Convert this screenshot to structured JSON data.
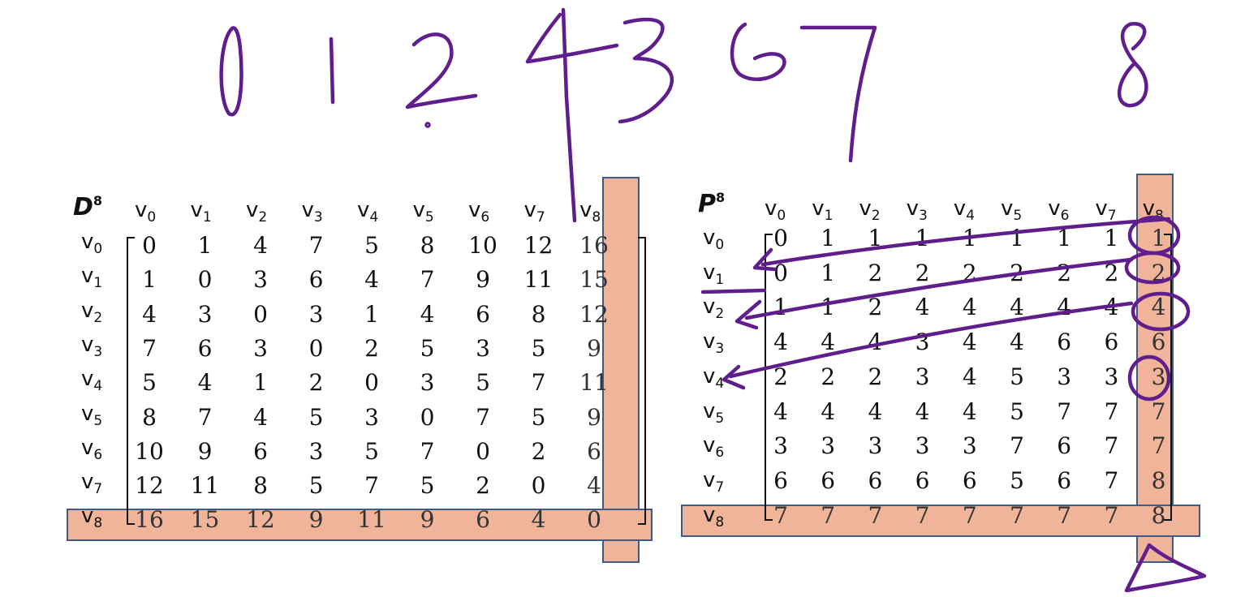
{
  "handwriting": {
    "path_sequence": [
      "0",
      "1",
      "2",
      "4",
      "3",
      "6",
      "7"
    ],
    "extra_number": "8"
  },
  "matrix_d": {
    "title_letter": "D",
    "title_power": "8",
    "col_prefix": "v",
    "col_subs": [
      "0",
      "1",
      "2",
      "3",
      "4",
      "5",
      "6",
      "7",
      "8"
    ],
    "row_prefix": "v",
    "row_subs": [
      "0",
      "1",
      "2",
      "3",
      "4",
      "5",
      "6",
      "7",
      "8"
    ],
    "rows": [
      [
        "0",
        "1",
        "4",
        "7",
        "5",
        "8",
        "10",
        "12",
        "16"
      ],
      [
        "1",
        "0",
        "3",
        "6",
        "4",
        "7",
        "9",
        "11",
        "15"
      ],
      [
        "4",
        "3",
        "0",
        "3",
        "1",
        "4",
        "6",
        "8",
        "12"
      ],
      [
        "7",
        "6",
        "3",
        "0",
        "2",
        "5",
        "3",
        "5",
        "9"
      ],
      [
        "5",
        "4",
        "1",
        "2",
        "0",
        "3",
        "5",
        "7",
        "11"
      ],
      [
        "8",
        "7",
        "4",
        "5",
        "3",
        "0",
        "7",
        "5",
        "9"
      ],
      [
        "10",
        "9",
        "6",
        "3",
        "5",
        "7",
        "0",
        "2",
        "6"
      ],
      [
        "12",
        "11",
        "8",
        "5",
        "7",
        "5",
        "2",
        "0",
        "4"
      ],
      [
        "16",
        "15",
        "12",
        "9",
        "11",
        "9",
        "6",
        "4",
        "0"
      ]
    ],
    "highlight": {
      "row_index": 8,
      "col_index": 8,
      "fill": "#efb49a",
      "border": "#3e5a86"
    }
  },
  "matrix_p": {
    "title_letter": "P",
    "title_power": "8",
    "col_prefix": "v",
    "col_subs": [
      "0",
      "1",
      "2",
      "3",
      "4",
      "5",
      "6",
      "7",
      "8"
    ],
    "row_prefix": "v",
    "row_subs": [
      "0",
      "1",
      "2",
      "3",
      "4",
      "5",
      "6",
      "7",
      "8"
    ],
    "rows": [
      [
        "0",
        "1",
        "1",
        "1",
        "1",
        "1",
        "1",
        "1",
        "1"
      ],
      [
        "0",
        "1",
        "2",
        "2",
        "2",
        "2",
        "2",
        "2",
        "2"
      ],
      [
        "1",
        "1",
        "2",
        "4",
        "4",
        "4",
        "4",
        "4",
        "4"
      ],
      [
        "4",
        "4",
        "4",
        "3",
        "4",
        "4",
        "6",
        "6",
        "6"
      ],
      [
        "2",
        "2",
        "2",
        "3",
        "4",
        "5",
        "3",
        "3",
        "3"
      ],
      [
        "4",
        "4",
        "4",
        "4",
        "4",
        "5",
        "7",
        "7",
        "7"
      ],
      [
        "3",
        "3",
        "3",
        "3",
        "3",
        "7",
        "6",
        "7",
        "7"
      ],
      [
        "6",
        "6",
        "6",
        "6",
        "6",
        "5",
        "6",
        "7",
        "8"
      ],
      [
        "7",
        "7",
        "7",
        "7",
        "7",
        "7",
        "7",
        "7",
        "8"
      ]
    ],
    "highlight": {
      "row_index": 8,
      "col_index": 8,
      "fill": "#efb49a",
      "border": "#3e5a86"
    }
  },
  "ink_color": "#5f1e8c"
}
